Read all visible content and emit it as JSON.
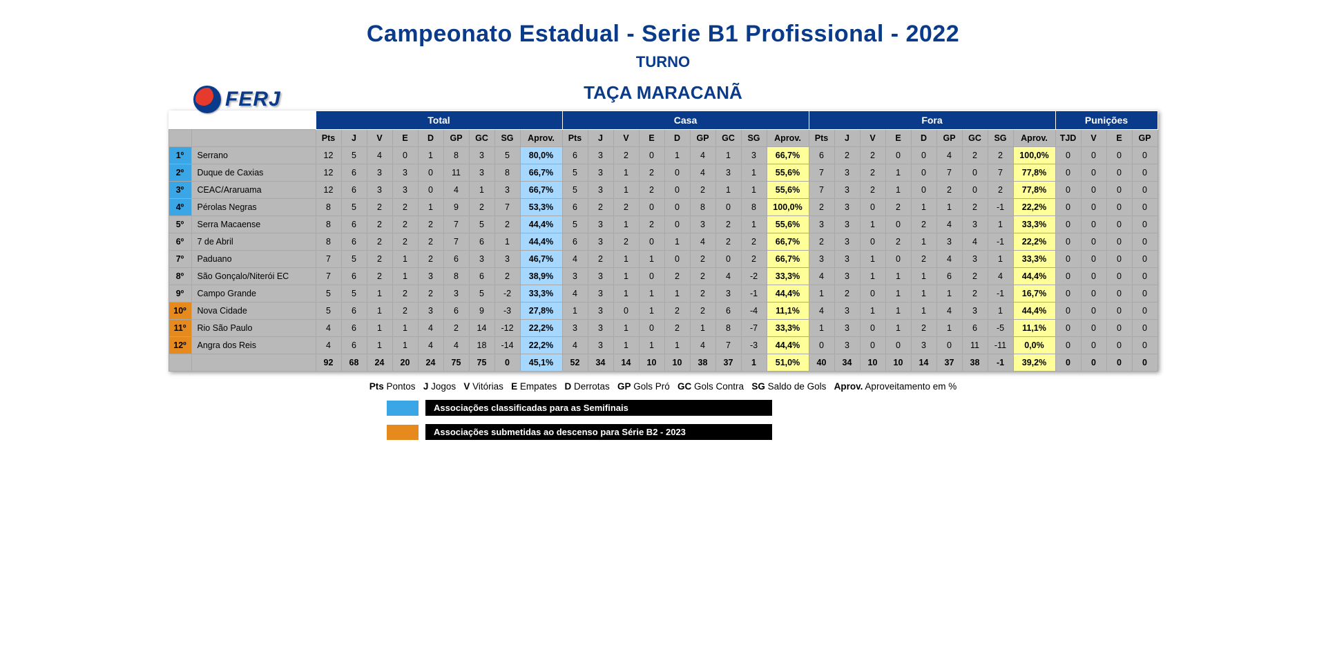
{
  "title": "Campeonato Estadual - Serie B1 Profissional - 2022",
  "subtitle1": "TURNO",
  "subtitle2": "TAÇA MARACANÃ",
  "logo_text": "FERJ",
  "groups": {
    "g1": "Total",
    "g2": "Casa",
    "g3": "Fora",
    "g4": "Punições"
  },
  "cols": {
    "pts": "Pts",
    "j": "J",
    "v": "V",
    "e": "E",
    "d": "D",
    "gp": "GP",
    "gc": "GC",
    "sg": "SG",
    "ap": "Aprov.",
    "tjd": "TJD"
  },
  "rows": [
    {
      "pos": "1º",
      "team": "Serrano",
      "q": true,
      "t": {
        "pts": 12,
        "j": 5,
        "v": 4,
        "e": 0,
        "d": 1,
        "gp": 8,
        "gc": 3,
        "sg": 5,
        "ap": "80,0%"
      },
      "c": {
        "pts": 6,
        "j": 3,
        "v": 2,
        "e": 0,
        "d": 1,
        "gp": 4,
        "gc": 1,
        "sg": 3,
        "ap": "66,7%"
      },
      "f": {
        "pts": 6,
        "j": 2,
        "v": 2,
        "e": 0,
        "d": 0,
        "gp": 4,
        "gc": 2,
        "sg": 2,
        "ap": "100,0%"
      },
      "p": {
        "tjd": 0,
        "v": 0,
        "e": 0,
        "gp": 0
      }
    },
    {
      "pos": "2º",
      "team": "Duque de Caxias",
      "q": true,
      "t": {
        "pts": 12,
        "j": 6,
        "v": 3,
        "e": 3,
        "d": 0,
        "gp": 11,
        "gc": 3,
        "sg": 8,
        "ap": "66,7%"
      },
      "c": {
        "pts": 5,
        "j": 3,
        "v": 1,
        "e": 2,
        "d": 0,
        "gp": 4,
        "gc": 3,
        "sg": 1,
        "ap": "55,6%"
      },
      "f": {
        "pts": 7,
        "j": 3,
        "v": 2,
        "e": 1,
        "d": 0,
        "gp": 7,
        "gc": 0,
        "sg": 7,
        "ap": "77,8%"
      },
      "p": {
        "tjd": 0,
        "v": 0,
        "e": 0,
        "gp": 0
      }
    },
    {
      "pos": "3º",
      "team": "CEAC/Araruama",
      "q": true,
      "t": {
        "pts": 12,
        "j": 6,
        "v": 3,
        "e": 3,
        "d": 0,
        "gp": 4,
        "gc": 1,
        "sg": 3,
        "ap": "66,7%"
      },
      "c": {
        "pts": 5,
        "j": 3,
        "v": 1,
        "e": 2,
        "d": 0,
        "gp": 2,
        "gc": 1,
        "sg": 1,
        "ap": "55,6%"
      },
      "f": {
        "pts": 7,
        "j": 3,
        "v": 2,
        "e": 1,
        "d": 0,
        "gp": 2,
        "gc": 0,
        "sg": 2,
        "ap": "77,8%"
      },
      "p": {
        "tjd": 0,
        "v": 0,
        "e": 0,
        "gp": 0
      }
    },
    {
      "pos": "4º",
      "team": "Pérolas Negras",
      "q": true,
      "t": {
        "pts": 8,
        "j": 5,
        "v": 2,
        "e": 2,
        "d": 1,
        "gp": 9,
        "gc": 2,
        "sg": 7,
        "ap": "53,3%"
      },
      "c": {
        "pts": 6,
        "j": 2,
        "v": 2,
        "e": 0,
        "d": 0,
        "gp": 8,
        "gc": 0,
        "sg": 8,
        "ap": "100,0%"
      },
      "f": {
        "pts": 2,
        "j": 3,
        "v": 0,
        "e": 2,
        "d": 1,
        "gp": 1,
        "gc": 2,
        "sg": -1,
        "ap": "22,2%"
      },
      "p": {
        "tjd": 0,
        "v": 0,
        "e": 0,
        "gp": 0
      }
    },
    {
      "pos": "5º",
      "team": "Serra Macaense",
      "t": {
        "pts": 8,
        "j": 6,
        "v": 2,
        "e": 2,
        "d": 2,
        "gp": 7,
        "gc": 5,
        "sg": 2,
        "ap": "44,4%"
      },
      "c": {
        "pts": 5,
        "j": 3,
        "v": 1,
        "e": 2,
        "d": 0,
        "gp": 3,
        "gc": 2,
        "sg": 1,
        "ap": "55,6%"
      },
      "f": {
        "pts": 3,
        "j": 3,
        "v": 1,
        "e": 0,
        "d": 2,
        "gp": 4,
        "gc": 3,
        "sg": 1,
        "ap": "33,3%"
      },
      "p": {
        "tjd": 0,
        "v": 0,
        "e": 0,
        "gp": 0
      }
    },
    {
      "pos": "6º",
      "team": "7 de Abril",
      "t": {
        "pts": 8,
        "j": 6,
        "v": 2,
        "e": 2,
        "d": 2,
        "gp": 7,
        "gc": 6,
        "sg": 1,
        "ap": "44,4%"
      },
      "c": {
        "pts": 6,
        "j": 3,
        "v": 2,
        "e": 0,
        "d": 1,
        "gp": 4,
        "gc": 2,
        "sg": 2,
        "ap": "66,7%"
      },
      "f": {
        "pts": 2,
        "j": 3,
        "v": 0,
        "e": 2,
        "d": 1,
        "gp": 3,
        "gc": 4,
        "sg": -1,
        "ap": "22,2%"
      },
      "p": {
        "tjd": 0,
        "v": 0,
        "e": 0,
        "gp": 0
      }
    },
    {
      "pos": "7º",
      "team": "Paduano",
      "t": {
        "pts": 7,
        "j": 5,
        "v": 2,
        "e": 1,
        "d": 2,
        "gp": 6,
        "gc": 3,
        "sg": 3,
        "ap": "46,7%"
      },
      "c": {
        "pts": 4,
        "j": 2,
        "v": 1,
        "e": 1,
        "d": 0,
        "gp": 2,
        "gc": 0,
        "sg": 2,
        "ap": "66,7%"
      },
      "f": {
        "pts": 3,
        "j": 3,
        "v": 1,
        "e": 0,
        "d": 2,
        "gp": 4,
        "gc": 3,
        "sg": 1,
        "ap": "33,3%"
      },
      "p": {
        "tjd": 0,
        "v": 0,
        "e": 0,
        "gp": 0
      }
    },
    {
      "pos": "8º",
      "team": "São Gonçalo/Niterói EC",
      "t": {
        "pts": 7,
        "j": 6,
        "v": 2,
        "e": 1,
        "d": 3,
        "gp": 8,
        "gc": 6,
        "sg": 2,
        "ap": "38,9%"
      },
      "c": {
        "pts": 3,
        "j": 3,
        "v": 1,
        "e": 0,
        "d": 2,
        "gp": 2,
        "gc": 4,
        "sg": -2,
        "ap": "33,3%"
      },
      "f": {
        "pts": 4,
        "j": 3,
        "v": 1,
        "e": 1,
        "d": 1,
        "gp": 6,
        "gc": 2,
        "sg": 4,
        "ap": "44,4%"
      },
      "p": {
        "tjd": 0,
        "v": 0,
        "e": 0,
        "gp": 0
      }
    },
    {
      "pos": "9º",
      "team": "Campo Grande",
      "t": {
        "pts": 5,
        "j": 5,
        "v": 1,
        "e": 2,
        "d": 2,
        "gp": 3,
        "gc": 5,
        "sg": -2,
        "ap": "33,3%"
      },
      "c": {
        "pts": 4,
        "j": 3,
        "v": 1,
        "e": 1,
        "d": 1,
        "gp": 2,
        "gc": 3,
        "sg": -1,
        "ap": "44,4%"
      },
      "f": {
        "pts": 1,
        "j": 2,
        "v": 0,
        "e": 1,
        "d": 1,
        "gp": 1,
        "gc": 2,
        "sg": -1,
        "ap": "16,7%"
      },
      "p": {
        "tjd": 0,
        "v": 0,
        "e": 0,
        "gp": 0
      }
    },
    {
      "pos": "10º",
      "team": "Nova Cidade",
      "r": true,
      "t": {
        "pts": 5,
        "j": 6,
        "v": 1,
        "e": 2,
        "d": 3,
        "gp": 6,
        "gc": 9,
        "sg": -3,
        "ap": "27,8%"
      },
      "c": {
        "pts": 1,
        "j": 3,
        "v": 0,
        "e": 1,
        "d": 2,
        "gp": 2,
        "gc": 6,
        "sg": -4,
        "ap": "11,1%"
      },
      "f": {
        "pts": 4,
        "j": 3,
        "v": 1,
        "e": 1,
        "d": 1,
        "gp": 4,
        "gc": 3,
        "sg": 1,
        "ap": "44,4%"
      },
      "p": {
        "tjd": 0,
        "v": 0,
        "e": 0,
        "gp": 0
      }
    },
    {
      "pos": "11º",
      "team": "Rio São Paulo",
      "r": true,
      "t": {
        "pts": 4,
        "j": 6,
        "v": 1,
        "e": 1,
        "d": 4,
        "gp": 2,
        "gc": 14,
        "sg": -12,
        "ap": "22,2%"
      },
      "c": {
        "pts": 3,
        "j": 3,
        "v": 1,
        "e": 0,
        "d": 2,
        "gp": 1,
        "gc": 8,
        "sg": -7,
        "ap": "33,3%"
      },
      "f": {
        "pts": 1,
        "j": 3,
        "v": 0,
        "e": 1,
        "d": 2,
        "gp": 1,
        "gc": 6,
        "sg": -5,
        "ap": "11,1%"
      },
      "p": {
        "tjd": 0,
        "v": 0,
        "e": 0,
        "gp": 0
      }
    },
    {
      "pos": "12º",
      "team": "Angra dos Reis",
      "r": true,
      "t": {
        "pts": 4,
        "j": 6,
        "v": 1,
        "e": 1,
        "d": 4,
        "gp": 4,
        "gc": 18,
        "sg": -14,
        "ap": "22,2%"
      },
      "c": {
        "pts": 4,
        "j": 3,
        "v": 1,
        "e": 1,
        "d": 1,
        "gp": 4,
        "gc": 7,
        "sg": -3,
        "ap": "44,4%"
      },
      "f": {
        "pts": 0,
        "j": 3,
        "v": 0,
        "e": 0,
        "d": 3,
        "gp": 0,
        "gc": 11,
        "sg": -11,
        "ap": "0,0%"
      },
      "p": {
        "tjd": 0,
        "v": 0,
        "e": 0,
        "gp": 0
      }
    }
  ],
  "totals": {
    "t": {
      "pts": 92,
      "j": 68,
      "v": 24,
      "e": 20,
      "d": 24,
      "gp": 75,
      "gc": 75,
      "sg": 0,
      "ap": "45,1%"
    },
    "c": {
      "pts": 52,
      "j": 34,
      "v": 14,
      "e": 10,
      "d": 10,
      "gp": 38,
      "gc": 37,
      "sg": 1,
      "ap": "51,0%"
    },
    "f": {
      "pts": 40,
      "j": 34,
      "v": 10,
      "e": 10,
      "d": 14,
      "gp": 37,
      "gc": 38,
      "sg": -1,
      "ap": "39,2%"
    },
    "p": {
      "tjd": 0,
      "v": 0,
      "e": 0,
      "gp": 0
    }
  },
  "legend_abbr": [
    {
      "k": "Pts",
      "v": "Pontos"
    },
    {
      "k": "J",
      "v": "Jogos"
    },
    {
      "k": "V",
      "v": "Vitórias"
    },
    {
      "k": "E",
      "v": "Empates"
    },
    {
      "k": "D",
      "v": "Derrotas"
    },
    {
      "k": "GP",
      "v": "Gols Pró"
    },
    {
      "k": "GC",
      "v": "Gols Contra"
    },
    {
      "k": "SG",
      "v": "Saldo de Gols"
    },
    {
      "k": "Aprov.",
      "v": "Aproveitamento em %"
    }
  ],
  "legend_q": "Associações classificadas para as Semifinais",
  "legend_r": "Associações submetidas ao descenso para Série B2 - 2023"
}
